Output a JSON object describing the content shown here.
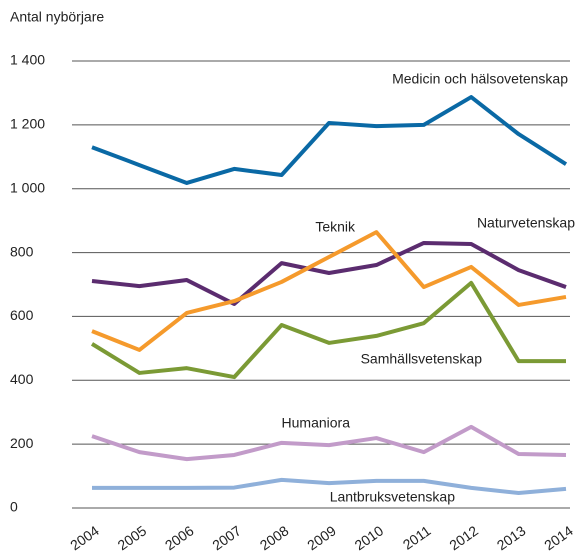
{
  "chart_data": {
    "type": "line",
    "y_label": "Antal nybörjare",
    "x": [
      "2004",
      "2005",
      "2006",
      "2007",
      "2008",
      "2009",
      "2010",
      "2011",
      "2012",
      "2013",
      "2014"
    ],
    "ylim": [
      0,
      1400
    ],
    "yticks": [
      0,
      200,
      400,
      600,
      800,
      {
        "value": 1000,
        "label": "1 000"
      },
      {
        "value": 1200,
        "label": "1 200"
      },
      {
        "value": 1400,
        "label": "1 400"
      }
    ],
    "grid": true,
    "series": [
      {
        "name": "Medicin och hälsovetenskap",
        "color": "#0a69a5",
        "values": [
          1130,
          1074,
          1018,
          1062,
          1043,
          1206,
          1196,
          1200,
          1287,
          1171,
          1077
        ]
      },
      {
        "name": "Naturvetenskap",
        "color": "#5b2c6f",
        "values": [
          711,
          695,
          714,
          639,
          767,
          736,
          761,
          830,
          827,
          745,
          692
        ]
      },
      {
        "name": "Teknik",
        "color": "#f59a2c",
        "values": [
          554,
          495,
          611,
          648,
          708,
          786,
          864,
          692,
          755,
          636,
          661
        ]
      },
      {
        "name": "Samhällsvetenskap",
        "color": "#7b9a35",
        "values": [
          514,
          423,
          438,
          410,
          573,
          517,
          539,
          579,
          705,
          460,
          460
        ]
      },
      {
        "name": "Humaniora",
        "color": "#c29bc9",
        "values": [
          225,
          175,
          153,
          166,
          204,
          197,
          219,
          175,
          254,
          169,
          166
        ]
      },
      {
        "name": "Lantbruksvetenskap",
        "color": "#8fb0da",
        "values": [
          63,
          63,
          63,
          64,
          88,
          78,
          85,
          85,
          63,
          47,
          60
        ]
      }
    ]
  }
}
